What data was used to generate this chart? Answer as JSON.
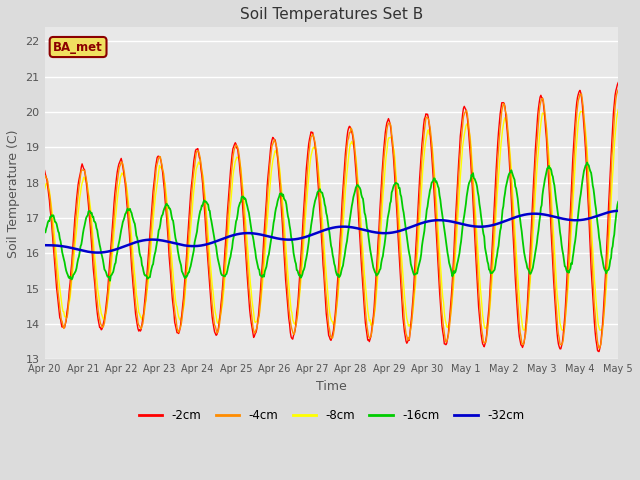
{
  "title": "Soil Temperatures Set B",
  "xlabel": "Time",
  "ylabel": "Soil Temperature (C)",
  "ylim": [
    13.0,
    22.4
  ],
  "yticks": [
    13.0,
    14.0,
    15.0,
    16.0,
    17.0,
    18.0,
    19.0,
    20.0,
    21.0,
    22.0
  ],
  "bg_color": "#dcdcdc",
  "plot_bg_color": "#e8e8e8",
  "legend_label": "BA_met",
  "legend_box_facecolor": "#f0e060",
  "legend_box_edge": "#8b0000",
  "legend_text_color": "#8b0000",
  "colors": {
    "-2cm": "#ff0000",
    "-4cm": "#ff8c00",
    "-8cm": "#ffff00",
    "-16cm": "#00cc00",
    "-32cm": "#0000cc"
  },
  "line_widths": {
    "-2cm": 1.0,
    "-4cm": 1.0,
    "-8cm": 1.0,
    "-16cm": 1.3,
    "-32cm": 1.8
  },
  "xtick_labels": [
    "Apr 20",
    "Apr 21",
    "Apr 22",
    "Apr 23",
    "Apr 24",
    "Apr 25",
    "Apr 26",
    "Apr 27",
    "Apr 28",
    "Apr 29",
    "Apr 30",
    "May 1",
    "May 2",
    "May 3",
    "May 4",
    "May 5"
  ],
  "n_days": 15,
  "pts_per_day": 48,
  "fig_width": 6.4,
  "fig_height": 4.8,
  "dpi": 100
}
